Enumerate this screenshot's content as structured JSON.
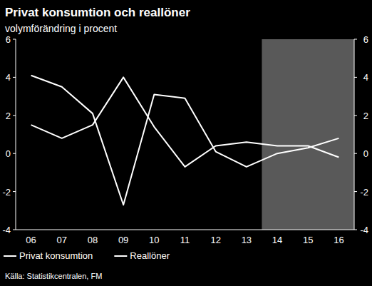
{
  "chart_data": {
    "type": "line",
    "title": "Privat konsumtion och reallöner",
    "subtitle": "volymförändring i procent",
    "source": "Källa: Statistikcentralen, FM",
    "categories": [
      "06",
      "07",
      "08",
      "09",
      "10",
      "11",
      "12",
      "13",
      "14",
      "15",
      "16"
    ],
    "series": [
      {
        "name": "Privat konsumtion",
        "color": "#ffffff",
        "values": [
          4.1,
          3.5,
          2.1,
          -2.7,
          3.1,
          2.9,
          0.1,
          -0.7,
          0.0,
          0.3,
          0.8
        ]
      },
      {
        "name": "Reallöner",
        "color": "#ffffff",
        "values": [
          1.5,
          0.8,
          1.5,
          4.0,
          1.4,
          -0.7,
          0.4,
          0.6,
          0.4,
          0.4,
          -0.2
        ]
      }
    ],
    "ylim": [
      -4,
      6
    ],
    "yticks": [
      -4,
      -2,
      0,
      2,
      4,
      6
    ],
    "y2lim": [
      -4,
      6
    ],
    "y2ticks": [
      -4,
      -2,
      0,
      2,
      4,
      6
    ],
    "grid": false,
    "legend": "bottom"
  }
}
